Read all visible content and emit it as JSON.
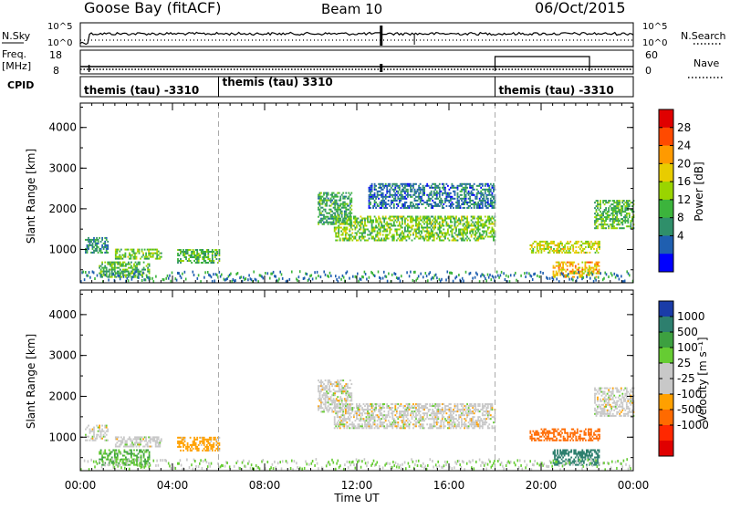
{
  "header": {
    "station": "Goose Bay (fitACF)",
    "beam": "Beam 10",
    "date": "06/Oct/2015"
  },
  "top_panels": {
    "nsky_label": "N.Sky",
    "nsky_ticks": [
      "10^5",
      "10^0"
    ],
    "nsearch_label": "N.Search",
    "nsearch_ticks": [
      "10^5",
      "10^0"
    ],
    "freq_label": "Freq.",
    "freq_unit": "[MHz]",
    "freq_ticks": [
      "18",
      "8"
    ],
    "nave_label": "Nave",
    "nave_ticks": [
      "60",
      "0"
    ],
    "cpid_label": "CPID",
    "cpid_segments": [
      {
        "label": "themis (tau) -3310",
        "start_hour": 0,
        "end_hour": 6
      },
      {
        "label": "themis (tau) 3310",
        "start_hour": 6,
        "end_hour": 18
      },
      {
        "label": "themis (tau) -3310",
        "start_hour": 18,
        "end_hour": 24
      }
    ]
  },
  "x_axis": {
    "label": "Time UT",
    "ticks": [
      "00:00",
      "04:00",
      "08:00",
      "12:00",
      "16:00",
      "20:00",
      "00:00"
    ],
    "tick_hours": [
      0,
      4,
      8,
      12,
      16,
      20,
      24
    ],
    "range_hours": [
      0,
      24
    ]
  },
  "chart_data": [
    {
      "type": "heatmap",
      "name": "power-panel",
      "ylabel": "Slant Range [km]",
      "yticks": [
        1000,
        2000,
        3000,
        4000
      ],
      "ylim": [
        180,
        4600
      ],
      "colorbar_label": "Power [dB]",
      "colorbar_ticks": [
        28,
        24,
        20,
        16,
        12,
        8,
        4
      ],
      "colorbar_colors": [
        "#e00000",
        "#ff4a00",
        "#ff9a00",
        "#e8cc00",
        "#9ad400",
        "#3cb43c",
        "#2f8f6a",
        "#1f5fb0",
        "#0000ff"
      ],
      "regions": [
        {
          "t0": 0.2,
          "t1": 1.2,
          "r0": 900,
          "r1": 1300,
          "level": 10
        },
        {
          "t0": 0.8,
          "t1": 3.0,
          "r0": 300,
          "r1": 700,
          "level": 14
        },
        {
          "t0": 1.5,
          "t1": 3.5,
          "r0": 750,
          "r1": 1000,
          "level": 16
        },
        {
          "t0": 4.2,
          "t1": 6.0,
          "r0": 650,
          "r1": 1000,
          "level": 14
        },
        {
          "t0": 10.3,
          "t1": 11.8,
          "r0": 1600,
          "r1": 2400,
          "level": 12
        },
        {
          "t0": 11.0,
          "t1": 18.0,
          "r0": 1200,
          "r1": 1800,
          "level": 16
        },
        {
          "t0": 12.5,
          "t1": 18.0,
          "r0": 2000,
          "r1": 2600,
          "level": 8
        },
        {
          "t0": 19.5,
          "t1": 22.5,
          "r0": 900,
          "r1": 1200,
          "level": 20
        },
        {
          "t0": 20.5,
          "t1": 22.5,
          "r0": 300,
          "r1": 700,
          "level": 24
        },
        {
          "t0": 22.3,
          "t1": 24.0,
          "r0": 1500,
          "r1": 2200,
          "level": 14
        }
      ]
    },
    {
      "type": "heatmap",
      "name": "velocity-panel",
      "ylabel": "Slant Range [km]",
      "yticks": [
        1000,
        2000,
        3000,
        4000
      ],
      "ylim": [
        180,
        4600
      ],
      "colorbar_label": "Velocity [m s⁻¹]",
      "colorbar_ticks": [
        1000,
        500,
        100,
        25,
        -25,
        -100,
        -500,
        -1000
      ],
      "colorbar_colors": [
        "#1a3ca8",
        "#2d7f6e",
        "#3da040",
        "#66cc33",
        "#c8c8c8",
        "#c8c8c8",
        "#ffa000",
        "#ff6a00",
        "#ff2800",
        "#e00000"
      ],
      "regions": [
        {
          "t0": 0.2,
          "t1": 1.2,
          "r0": 900,
          "r1": 1300,
          "level": 0
        },
        {
          "t0": 0.8,
          "t1": 3.0,
          "r0": 300,
          "r1": 700,
          "level": 50
        },
        {
          "t0": 1.5,
          "t1": 3.5,
          "r0": 750,
          "r1": 1000,
          "level": 0
        },
        {
          "t0": 4.2,
          "t1": 6.0,
          "r0": 650,
          "r1": 1000,
          "level": -50
        },
        {
          "t0": 10.3,
          "t1": 11.8,
          "r0": 1600,
          "r1": 2400,
          "level": 0
        },
        {
          "t0": 11.0,
          "t1": 18.0,
          "r0": 1200,
          "r1": 1800,
          "level": 0
        },
        {
          "t0": 19.5,
          "t1": 22.5,
          "r0": 900,
          "r1": 1200,
          "level": -200
        },
        {
          "t0": 20.5,
          "t1": 22.5,
          "r0": 300,
          "r1": 700,
          "level": 200
        },
        {
          "t0": 22.3,
          "t1": 24.0,
          "r0": 1500,
          "r1": 2200,
          "level": 0
        }
      ]
    }
  ]
}
